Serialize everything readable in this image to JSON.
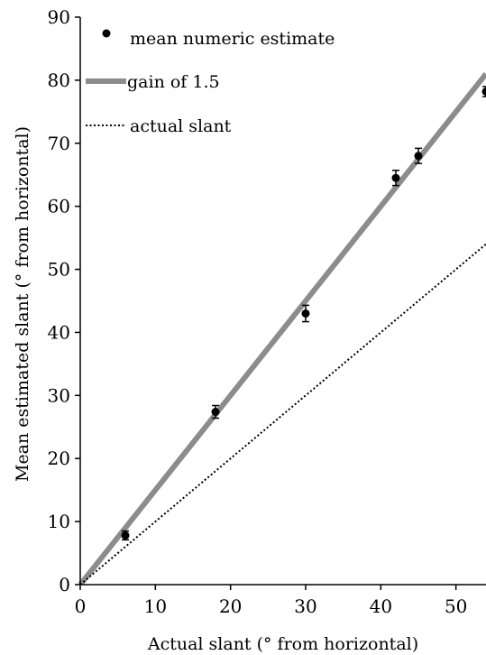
{
  "chart_data": {
    "type": "scatter",
    "title": "",
    "xlabel": "Actual slant (° from horizontal)",
    "ylabel": "Mean estimated slant (° from horizontal)",
    "xlim": [
      0,
      54
    ],
    "ylim": [
      0,
      90
    ],
    "x_ticks": [
      0,
      10,
      20,
      30,
      40,
      50
    ],
    "y_ticks": [
      0,
      10,
      20,
      30,
      40,
      50,
      60,
      70,
      80,
      90
    ],
    "grid": false,
    "legend_position": "top-left",
    "series": [
      {
        "name": "mean numeric estimate",
        "kind": "points",
        "color": "#000000",
        "points": [
          {
            "x": 6,
            "y": 7.8,
            "err": 0.7
          },
          {
            "x": 18,
            "y": 27.4,
            "err": 1.0
          },
          {
            "x": 30,
            "y": 43.0,
            "err": 1.3
          },
          {
            "x": 42,
            "y": 64.5,
            "err": 1.2
          },
          {
            "x": 45,
            "y": 68.0,
            "err": 1.2
          },
          {
            "x": 54,
            "y": 78.2,
            "err": 0.8
          }
        ]
      },
      {
        "name": "gain of 1.5",
        "kind": "line",
        "color": "#8c8c8c",
        "slope": 1.5,
        "intercept": 0
      },
      {
        "name": "actual slant",
        "kind": "dotted-line",
        "color": "#000000",
        "slope": 1.0,
        "intercept": 0
      }
    ]
  }
}
